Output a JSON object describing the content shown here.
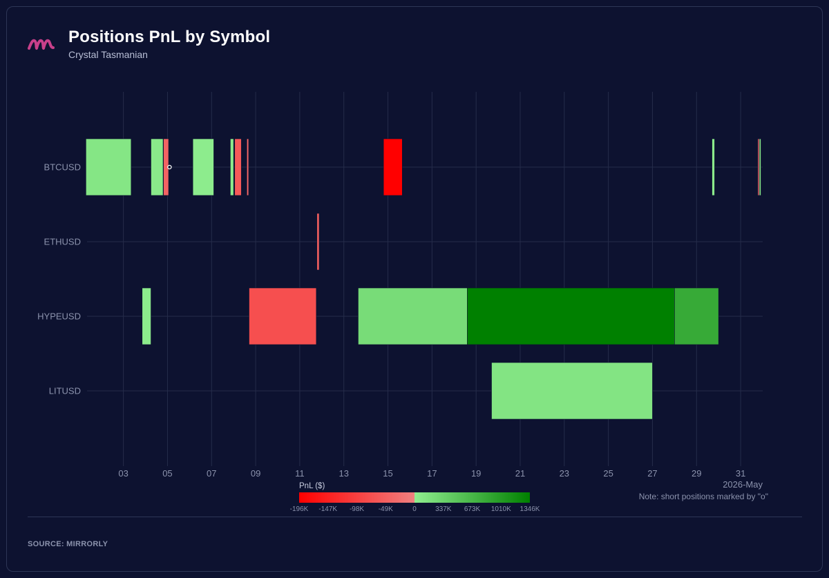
{
  "header": {
    "title": "Positions PnL by Symbol",
    "subtitle": "Crystal Tasmanian"
  },
  "footer": {
    "source": "SOURCE: MIRRORLY"
  },
  "icons": {
    "logo": "mirrorly-logo-icon"
  },
  "colors": {
    "background": "#0d1230",
    "grid": "#252c4a",
    "axis_text": "#8c93ad",
    "logo": "#c8408a"
  },
  "chart_data": {
    "type": "timeline",
    "x_axis_label": "2026-May",
    "x_ticks": [
      "03",
      "05",
      "07",
      "09",
      "11",
      "13",
      "15",
      "17",
      "19",
      "21",
      "23",
      "25",
      "27",
      "29",
      "31"
    ],
    "x_tick_values": [
      3,
      5,
      7,
      9,
      11,
      13,
      15,
      17,
      19,
      21,
      23,
      25,
      27,
      29,
      31
    ],
    "xlim": [
      1.1,
      32.0
    ],
    "categories": [
      "BTCUSD",
      "ETHUSD",
      "HYPEUSD",
      "LITUSD"
    ],
    "note": "Note: short positions marked by \"o\"",
    "colorbar": {
      "label": "PnL ($)",
      "ticks": [
        "-196K",
        "-147K",
        "-98K",
        "-49K",
        "0",
        "337K",
        "673K",
        "1010K",
        "1346K"
      ],
      "tick_values": [
        -196000,
        -147000,
        -98000,
        -49000,
        0,
        337000,
        673000,
        1010000,
        1346000
      ],
      "neg_colors": [
        "#ff0000",
        "#f08080"
      ],
      "pos_colors": [
        "#90ee90",
        "#008000"
      ]
    },
    "positions": [
      {
        "symbol": "BTCUSD",
        "start": 1.3,
        "end": 3.35,
        "pnl": 100000
      },
      {
        "symbol": "BTCUSD",
        "start": 4.25,
        "end": 4.8,
        "pnl": 60000
      },
      {
        "symbol": "BTCUSD",
        "start": 4.82,
        "end": 5.05,
        "pnl": -45000,
        "short": true
      },
      {
        "symbol": "BTCUSD",
        "start": 6.15,
        "end": 7.1,
        "pnl": 30000
      },
      {
        "symbol": "BTCUSD",
        "start": 7.85,
        "end": 8.0,
        "pnl": 40000
      },
      {
        "symbol": "BTCUSD",
        "start": 8.05,
        "end": 8.35,
        "pnl": -60000
      },
      {
        "symbol": "BTCUSD",
        "start": 8.6,
        "end": 8.68,
        "pnl": -40000
      },
      {
        "symbol": "BTCUSD",
        "start": 14.8,
        "end": 15.65,
        "pnl": -196000
      },
      {
        "symbol": "BTCUSD",
        "start": 29.7,
        "end": 29.82,
        "pnl": 50000
      },
      {
        "symbol": "BTCUSD",
        "start": 31.78,
        "end": 31.84,
        "pnl": -30000
      },
      {
        "symbol": "BTCUSD",
        "start": 31.85,
        "end": 31.92,
        "pnl": 40000
      },
      {
        "symbol": "ETHUSD",
        "start": 11.78,
        "end": 11.88,
        "pnl": -50000
      },
      {
        "symbol": "HYPEUSD",
        "start": 3.85,
        "end": 4.25,
        "pnl": 40000
      },
      {
        "symbol": "HYPEUSD",
        "start": 8.7,
        "end": 11.75,
        "pnl": -75000
      },
      {
        "symbol": "HYPEUSD",
        "start": 13.65,
        "end": 18.6,
        "pnl": 220000
      },
      {
        "symbol": "HYPEUSD",
        "start": 18.6,
        "end": 28.0,
        "pnl": 1346000
      },
      {
        "symbol": "HYPEUSD",
        "start": 28.0,
        "end": 30.0,
        "pnl": 830000
      },
      {
        "symbol": "LITUSD",
        "start": 19.7,
        "end": 27.0,
        "pnl": 120000
      }
    ]
  }
}
